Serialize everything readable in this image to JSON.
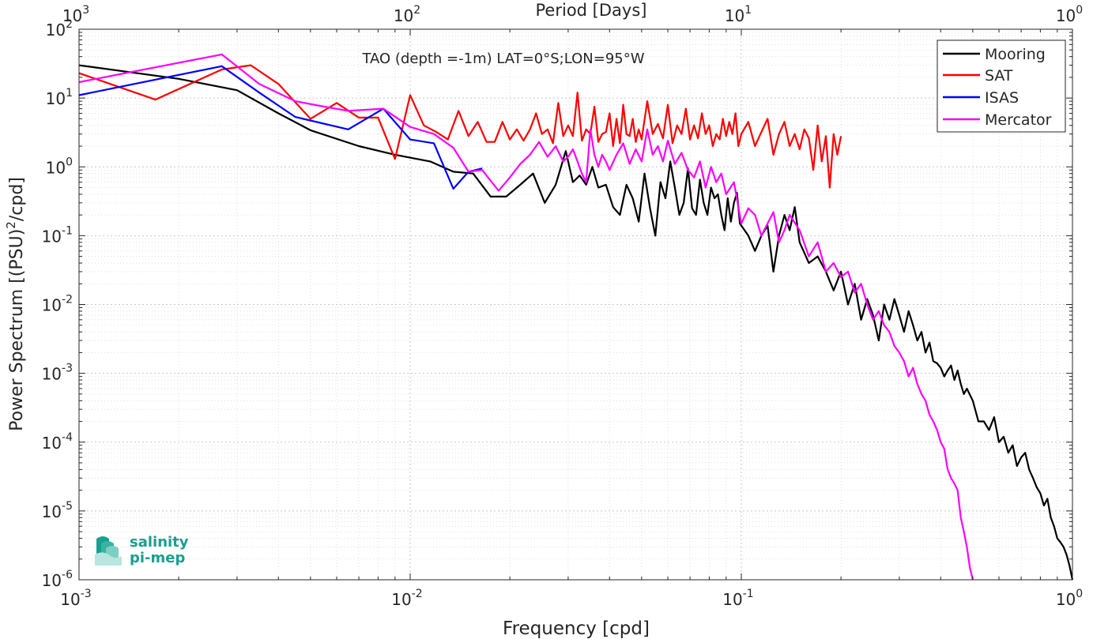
{
  "chart_data": {
    "type": "line",
    "title": "TAO (depth =-1m) LAT=0°S;LON=95°W",
    "xlabel": "Frequency [cpd]",
    "ylabel": "Power Spectrum [(PSU)",
    "ylabel_sup": "2",
    "ylabel_tail": "/cpd]",
    "top_xlabel": "Period [Days]",
    "x_scale": "log",
    "y_scale": "log",
    "xlim": [
      0.001,
      1
    ],
    "ylim": [
      1e-06,
      100
    ],
    "top_xlim": [
      1000,
      1
    ],
    "grid": true,
    "legend_position": "top-right",
    "x_ticks": [
      {
        "base": "10",
        "exp": "-3",
        "value": 0.001
      },
      {
        "base": "10",
        "exp": "-2",
        "value": 0.01
      },
      {
        "base": "10",
        "exp": "-1",
        "value": 0.1
      },
      {
        "base": "10",
        "exp": "0",
        "value": 1
      }
    ],
    "top_x_ticks": [
      {
        "base": "10",
        "exp": "3",
        "value": 1000
      },
      {
        "base": "10",
        "exp": "2",
        "value": 100
      },
      {
        "base": "10",
        "exp": "1",
        "value": 10
      },
      {
        "base": "10",
        "exp": "0",
        "value": 1
      }
    ],
    "y_ticks": [
      {
        "base": "10",
        "exp": "2",
        "value": 100
      },
      {
        "base": "10",
        "exp": "1",
        "value": 10
      },
      {
        "base": "10",
        "exp": "0",
        "value": 1
      },
      {
        "base": "10",
        "exp": "-1",
        "value": 0.1
      },
      {
        "base": "10",
        "exp": "-2",
        "value": 0.01
      },
      {
        "base": "10",
        "exp": "-3",
        "value": 0.001
      },
      {
        "base": "10",
        "exp": "-4",
        "value": 0.0001
      },
      {
        "base": "10",
        "exp": "-5",
        "value": 1e-05
      },
      {
        "base": "10",
        "exp": "-6",
        "value": 1e-06
      }
    ],
    "series": [
      {
        "name": "Mooring",
        "color": "#000000",
        "x": [
          0.001,
          0.002,
          0.003,
          0.004,
          0.005,
          0.007,
          0.009,
          0.0115,
          0.0135,
          0.0155,
          0.0175,
          0.0195,
          0.0215,
          0.0235,
          0.0255,
          0.0275,
          0.0295,
          0.031,
          0.0325,
          0.034,
          0.0355,
          0.037,
          0.039,
          0.041,
          0.043,
          0.045,
          0.047,
          0.049,
          0.051,
          0.053,
          0.055,
          0.057,
          0.059,
          0.061,
          0.063,
          0.065,
          0.067,
          0.069,
          0.071,
          0.073,
          0.075,
          0.077,
          0.079,
          0.081,
          0.083,
          0.085,
          0.087,
          0.089,
          0.091,
          0.093,
          0.095,
          0.097,
          0.099,
          0.105,
          0.11,
          0.115,
          0.12,
          0.125,
          0.13,
          0.135,
          0.14,
          0.145,
          0.15,
          0.16,
          0.17,
          0.18,
          0.19,
          0.2,
          0.21,
          0.22,
          0.23,
          0.24,
          0.25,
          0.26,
          0.27,
          0.28,
          0.29,
          0.3,
          0.31,
          0.32,
          0.33,
          0.34,
          0.35,
          0.36,
          0.37,
          0.38,
          0.39,
          0.4,
          0.41,
          0.42,
          0.43,
          0.44,
          0.45,
          0.46,
          0.47,
          0.48,
          0.5,
          0.52,
          0.54,
          0.56,
          0.58,
          0.6,
          0.62,
          0.64,
          0.66,
          0.68,
          0.7,
          0.72,
          0.74,
          0.76,
          0.78,
          0.8,
          0.82,
          0.84,
          0.86,
          0.88,
          0.9,
          0.92,
          0.94,
          0.96,
          0.98,
          1.0
        ],
        "y": [
          30,
          19,
          13,
          6,
          3.4,
          2,
          1.5,
          1.2,
          0.85,
          0.8,
          0.37,
          0.37,
          0.55,
          0.8,
          0.3,
          0.55,
          1.7,
          0.6,
          0.75,
          0.55,
          1.0,
          0.5,
          0.55,
          0.26,
          0.2,
          0.55,
          0.35,
          0.16,
          0.8,
          0.25,
          0.1,
          0.6,
          0.35,
          1.2,
          0.5,
          0.2,
          0.3,
          0.95,
          0.25,
          0.2,
          0.65,
          0.3,
          0.2,
          0.5,
          0.35,
          0.4,
          0.2,
          0.12,
          0.35,
          0.16,
          0.3,
          0.42,
          0.15,
          0.1,
          0.06,
          0.1,
          0.14,
          0.03,
          0.1,
          0.2,
          0.12,
          0.26,
          0.08,
          0.04,
          0.05,
          0.03,
          0.016,
          0.03,
          0.01,
          0.02,
          0.006,
          0.012,
          0.007,
          0.003,
          0.01,
          0.006,
          0.012,
          0.007,
          0.004,
          0.008,
          0.005,
          0.003,
          0.004,
          0.002,
          0.0028,
          0.0015,
          0.0014,
          0.0012,
          0.0009,
          0.0011,
          0.0013,
          0.0008,
          0.0011,
          0.0007,
          0.0005,
          0.0006,
          0.0004,
          0.0002,
          0.0002,
          0.00015,
          0.00023,
          0.0001,
          0.00012,
          7e-05,
          9e-05,
          4.5e-05,
          6e-05,
          7e-05,
          4e-05,
          3e-05,
          2.2e-05,
          1.8e-05,
          1.2e-05,
          1.5e-05,
          8e-06,
          6e-06,
          4e-06,
          3.5e-06,
          3e-06,
          2.3e-06,
          1.6e-06,
          1e-06
        ]
      },
      {
        "name": "SAT",
        "color": "#ff0000",
        "x": [
          0.001,
          0.0017,
          0.0027,
          0.0033,
          0.004,
          0.005,
          0.006,
          0.007,
          0.008,
          0.009,
          0.01,
          0.011,
          0.012,
          0.013,
          0.014,
          0.015,
          0.016,
          0.017,
          0.018,
          0.019,
          0.02,
          0.021,
          0.022,
          0.023,
          0.024,
          0.025,
          0.026,
          0.027,
          0.028,
          0.029,
          0.03,
          0.031,
          0.032,
          0.033,
          0.034,
          0.035,
          0.036,
          0.037,
          0.038,
          0.039,
          0.04,
          0.041,
          0.042,
          0.043,
          0.044,
          0.045,
          0.046,
          0.047,
          0.048,
          0.049,
          0.05,
          0.052,
          0.054,
          0.056,
          0.058,
          0.06,
          0.062,
          0.064,
          0.066,
          0.068,
          0.07,
          0.072,
          0.074,
          0.076,
          0.078,
          0.08,
          0.082,
          0.084,
          0.086,
          0.088,
          0.09,
          0.092,
          0.094,
          0.096,
          0.098,
          0.1,
          0.105,
          0.11,
          0.115,
          0.12,
          0.125,
          0.13,
          0.135,
          0.14,
          0.145,
          0.15,
          0.155,
          0.16,
          0.165,
          0.17,
          0.175,
          0.18,
          0.185,
          0.19,
          0.195,
          0.2
        ],
        "y": [
          23,
          9.5,
          26,
          30,
          16,
          5,
          8.5,
          5.2,
          5.2,
          1.3,
          11,
          4,
          3.2,
          2.5,
          6.5,
          2.8,
          4.5,
          2.3,
          2.3,
          4.5,
          2.5,
          3.5,
          2.4,
          3.5,
          6,
          3,
          3.5,
          2.2,
          8.5,
          2.8,
          4,
          2.8,
          12,
          2.4,
          3.5,
          3,
          7.5,
          2.3,
          3,
          3.2,
          6,
          2,
          5,
          2.2,
          8,
          3,
          2.8,
          5,
          2.3,
          3.5,
          2.5,
          9,
          3,
          4.2,
          2.6,
          8,
          2.2,
          4,
          3,
          7,
          2.5,
          4,
          2.6,
          6,
          3,
          4,
          2,
          3,
          2.5,
          5,
          2.8,
          4.5,
          3,
          6,
          2,
          3,
          4.5,
          2,
          3.2,
          5,
          1.5,
          3,
          4.5,
          2,
          3,
          1.8,
          3.5,
          2.6,
          0.9,
          4,
          1.2,
          2.8,
          0.5,
          3,
          1.5,
          2.8
        ]
      },
      {
        "name": "ISAS",
        "color": "#0000ff",
        "x": [
          0.001,
          0.0027,
          0.0035,
          0.0045,
          0.0065,
          0.0083,
          0.01,
          0.0118,
          0.0135,
          0.015,
          0.0165
        ],
        "y": [
          11,
          29,
          12,
          5.3,
          3.5,
          7,
          2.5,
          2.2,
          0.48,
          0.85,
          0.95
        ]
      },
      {
        "name": "Mercator",
        "color": "#ff00ff",
        "x": [
          0.001,
          0.0027,
          0.0035,
          0.0045,
          0.0055,
          0.0065,
          0.0083,
          0.01,
          0.0118,
          0.0135,
          0.015,
          0.0165,
          0.0185,
          0.02,
          0.0215,
          0.023,
          0.0245,
          0.026,
          0.0275,
          0.029,
          0.03,
          0.031,
          0.032,
          0.033,
          0.034,
          0.035,
          0.036,
          0.037,
          0.038,
          0.039,
          0.04,
          0.042,
          0.044,
          0.046,
          0.048,
          0.05,
          0.052,
          0.054,
          0.056,
          0.058,
          0.06,
          0.063,
          0.066,
          0.069,
          0.072,
          0.075,
          0.078,
          0.081,
          0.084,
          0.087,
          0.09,
          0.095,
          0.1,
          0.105,
          0.11,
          0.115,
          0.12,
          0.125,
          0.13,
          0.135,
          0.14,
          0.15,
          0.16,
          0.17,
          0.18,
          0.19,
          0.2,
          0.21,
          0.22,
          0.23,
          0.24,
          0.25,
          0.26,
          0.27,
          0.28,
          0.29,
          0.3,
          0.31,
          0.32,
          0.33,
          0.34,
          0.35,
          0.36,
          0.37,
          0.38,
          0.39,
          0.4,
          0.41,
          0.42,
          0.43,
          0.44,
          0.45,
          0.46,
          0.47,
          0.48,
          0.49,
          0.5
        ],
        "y": [
          17,
          43,
          16,
          9,
          7.5,
          6.5,
          7,
          3.8,
          3,
          1.9,
          0.85,
          0.9,
          0.45,
          0.7,
          1.1,
          1.5,
          2.3,
          1.4,
          2,
          1.2,
          1.4,
          1.8,
          1.2,
          0.8,
          0.6,
          3.5,
          1.5,
          1.0,
          1.5,
          1.2,
          0.9,
          1.5,
          2.2,
          1.1,
          1.8,
          1.2,
          3.5,
          1.5,
          2,
          1.2,
          2.4,
          1.1,
          1.6,
          0.9,
          0.7,
          1.2,
          0.5,
          1,
          0.6,
          0.8,
          0.4,
          0.6,
          0.15,
          0.25,
          0.2,
          0.1,
          0.15,
          0.22,
          0.08,
          0.12,
          0.2,
          0.12,
          0.05,
          0.08,
          0.03,
          0.04,
          0.025,
          0.03,
          0.015,
          0.02,
          0.01,
          0.006,
          0.008,
          0.005,
          0.004,
          0.0025,
          0.002,
          0.0015,
          0.0009,
          0.0012,
          0.0007,
          0.0005,
          0.0004,
          0.00025,
          0.0002,
          0.00015,
          0.0001,
          8e-05,
          4e-05,
          3e-05,
          2.5e-05,
          2e-05,
          8e-06,
          5e-06,
          3e-06,
          1.5e-06,
          1e-06
        ]
      }
    ]
  },
  "logo": {
    "line1": "salinity",
    "line2": "pi-mep"
  }
}
